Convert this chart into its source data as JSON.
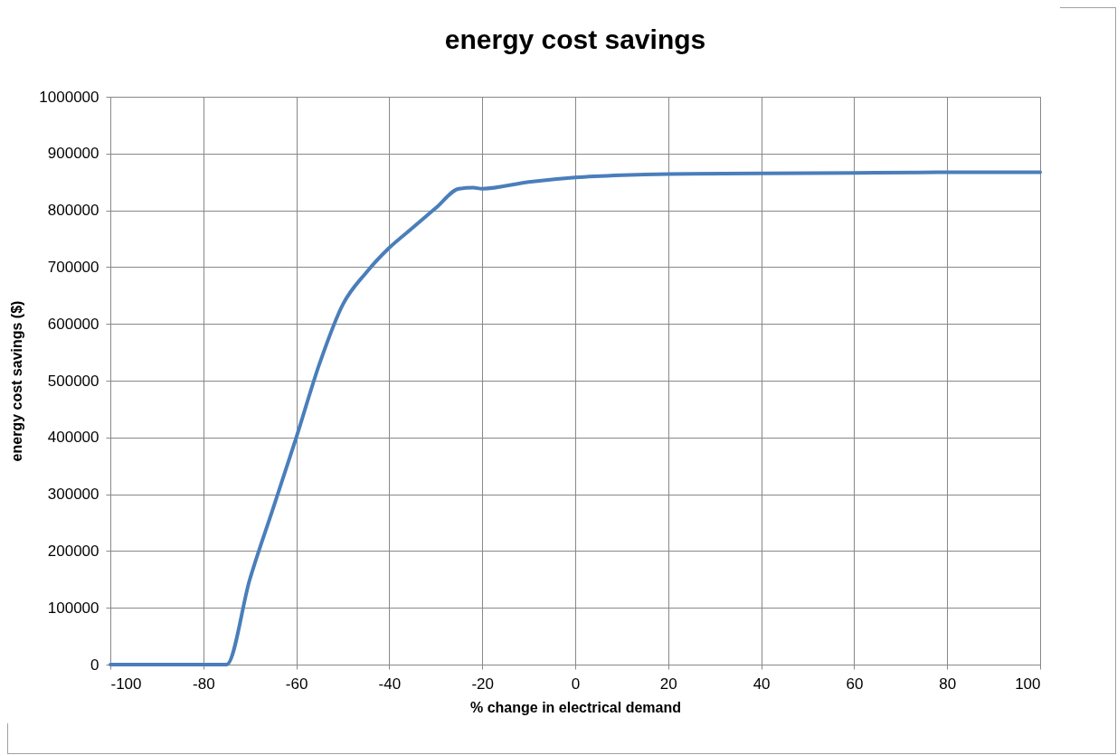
{
  "chart_data": {
    "type": "line",
    "title": "energy cost savings",
    "xlabel": "% change in electrical demand",
    "ylabel": "energy cost savings  ($)",
    "x": [
      -100,
      -90,
      -80,
      -75,
      -70,
      -65,
      -60,
      -55,
      -50,
      -45,
      -40,
      -35,
      -30,
      -25,
      -22,
      -20,
      -10,
      0,
      10,
      20,
      40,
      60,
      80,
      100
    ],
    "series": [
      {
        "color": "#4a7ebb",
        "values": [
          0,
          0,
          0,
          0,
          150000,
          275000,
          400000,
          530000,
          634000,
          690000,
          734000,
          769000,
          804000,
          838000,
          840000,
          838000,
          850000,
          858000,
          862000,
          864000,
          865000,
          866000,
          867000,
          867000
        ]
      }
    ],
    "xlim": [
      -100,
      100
    ],
    "xticks": [
      -100,
      -80,
      -60,
      -40,
      -20,
      0,
      20,
      40,
      60,
      80,
      100
    ],
    "ylim": [
      0,
      1000000
    ],
    "yticks": [
      0,
      100000,
      200000,
      300000,
      400000,
      500000,
      600000,
      700000,
      800000,
      900000,
      1000000
    ],
    "grid": true,
    "legend": false,
    "marker": "none",
    "line_style": "solid"
  }
}
